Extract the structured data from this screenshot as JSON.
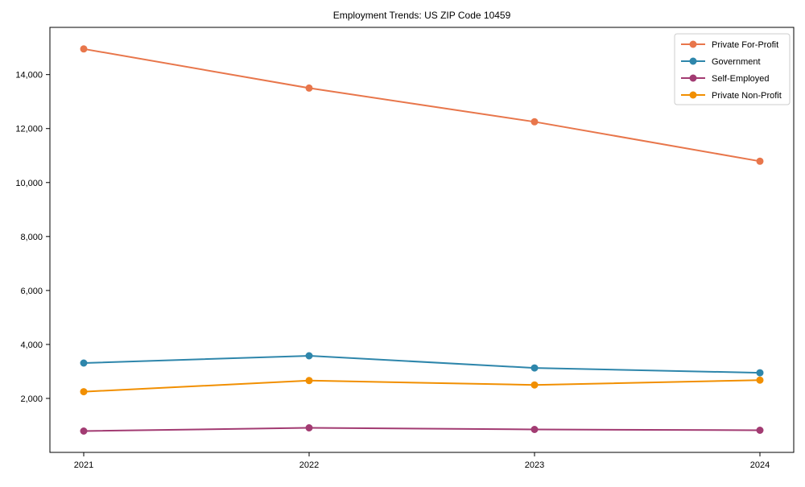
{
  "figure": {
    "background": "#ffffff",
    "axis_color": "#000000",
    "tick_label_color": "#000000"
  },
  "chart_data": {
    "type": "line",
    "title": "Employment Trends: US ZIP Code 10459",
    "categories": [
      2021,
      2022,
      2023,
      2024
    ],
    "series": [
      {
        "name": "Private For-Profit",
        "color": "#E8764B",
        "values": [
          14950,
          13500,
          12250,
          10790
        ]
      },
      {
        "name": "Government",
        "color": "#2E86AB",
        "values": [
          3310,
          3580,
          3130,
          2950
        ]
      },
      {
        "name": "Self-Employed",
        "color": "#A23B72",
        "values": [
          790,
          910,
          850,
          820
        ]
      },
      {
        "name": "Private Non-Profit",
        "color": "#F18F01",
        "values": [
          2250,
          2660,
          2500,
          2680
        ]
      }
    ],
    "xlabel": "",
    "ylabel": "",
    "xlim": [
      2020.85,
      2024.15
    ],
    "ylim": [
      0,
      15750
    ],
    "yticks": [
      2000,
      4000,
      6000,
      8000,
      10000,
      12000,
      14000
    ],
    "ytick_labels": [
      "2,000",
      "4,000",
      "6,000",
      "8,000",
      "10,000",
      "12,000",
      "14,000"
    ],
    "xtick_labels": [
      "2021",
      "2022",
      "2023",
      "2024"
    ],
    "grid": false,
    "legend": {
      "position": "upper right",
      "background": "#ffffff",
      "border_color": "#cccccc",
      "entries": [
        "Private For-Profit",
        "Government",
        "Self-Employed",
        "Private Non-Profit"
      ]
    }
  }
}
